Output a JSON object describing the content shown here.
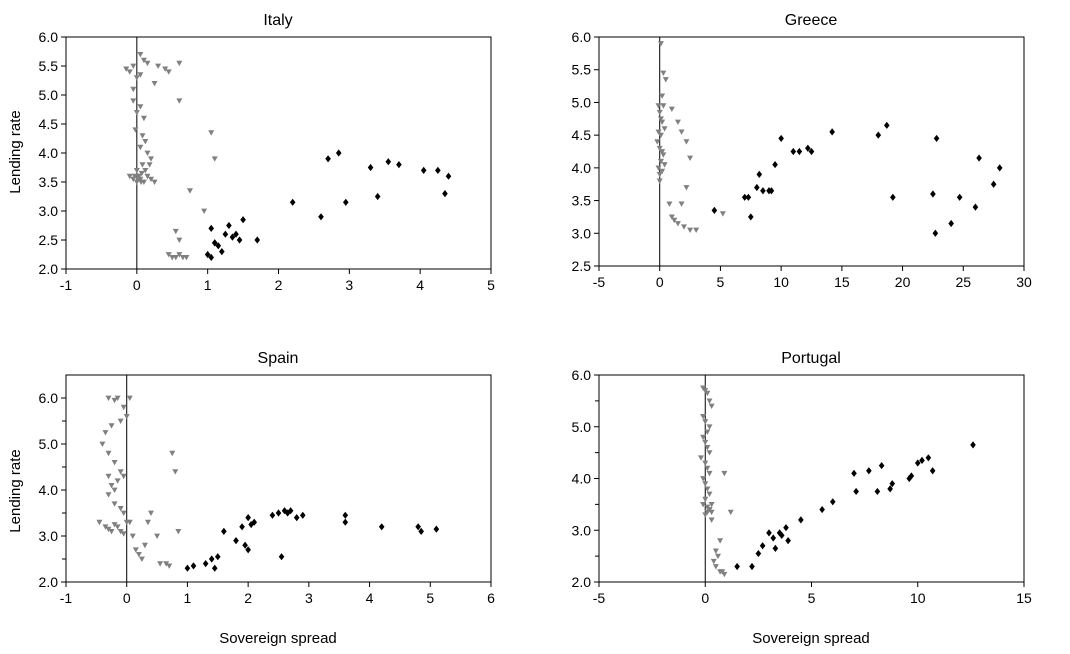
{
  "colors": {
    "grey_series": "#808080",
    "black_series": "#000000"
  },
  "chart_data": [
    {
      "type": "scatter",
      "title": "Italy",
      "xlabel": "",
      "ylabel": "Lending rate",
      "xlim": [
        -1,
        5
      ],
      "ylim": [
        2.0,
        6.0
      ],
      "xticks": [
        -1,
        0,
        1,
        2,
        3,
        4,
        5
      ],
      "xtick_labels": [
        "-1",
        "0",
        "1",
        "2",
        "3",
        "4",
        "5"
      ],
      "yticks": [
        2.0,
        2.5,
        3.0,
        3.5,
        4.0,
        4.5,
        5.0,
        5.5,
        6.0
      ],
      "ytick_labels": [
        "2.0",
        "2.5",
        "3.0",
        "3.5",
        "4.0",
        "4.5",
        "5.0",
        "5.5",
        "6.0"
      ],
      "zero_line": true,
      "grid": false,
      "series": [
        {
          "marker": "triangle-down",
          "color": "#808080",
          "x": [
            -0.15,
            -0.1,
            -0.05,
            0.05,
            0.1,
            0.0,
            -0.05,
            0.05,
            0.15,
            0.3,
            0.4,
            0.45,
            0.25,
            0.6,
            -0.05,
            0.0,
            0.05,
            0.1,
            -0.02,
            0.08,
            0.12,
            0.15,
            0.2,
            0.18,
            0.05,
            0.0,
            0.02,
            0.06,
            -0.1,
            -0.05,
            0.0,
            0.05,
            0.1,
            0.15,
            0.2,
            0.25,
            0.12,
            0.08,
            0.03,
            -0.03,
            0.07,
            0.02,
            0.6,
            1.05,
            1.1,
            0.75,
            0.95,
            0.55,
            0.6,
            0.45,
            0.5,
            0.55,
            0.65,
            0.7,
            0.6
          ],
          "y": [
            5.45,
            5.4,
            5.5,
            5.7,
            5.6,
            5.3,
            5.1,
            5.35,
            5.55,
            5.5,
            5.45,
            5.4,
            5.2,
            5.55,
            4.9,
            4.7,
            4.8,
            4.6,
            4.4,
            4.3,
            4.2,
            4.0,
            3.9,
            3.8,
            4.1,
            3.7,
            3.6,
            3.5,
            3.6,
            3.55,
            3.5,
            3.55,
            3.5,
            3.6,
            3.55,
            3.5,
            3.7,
            3.8,
            3.6,
            3.6,
            3.65,
            3.55,
            4.9,
            4.35,
            3.9,
            3.35,
            3.0,
            2.65,
            2.5,
            2.25,
            2.2,
            2.2,
            2.2,
            2.2,
            2.25
          ]
        },
        {
          "marker": "diamond",
          "color": "#000000",
          "x": [
            1.0,
            1.05,
            1.1,
            1.15,
            1.2,
            1.25,
            1.3,
            1.35,
            1.4,
            1.45,
            1.5,
            1.05,
            1.1,
            1.7,
            2.2,
            2.6,
            2.7,
            2.85,
            2.95,
            3.3,
            3.4,
            3.55,
            3.7,
            4.05,
            4.25,
            4.35,
            4.4
          ],
          "y": [
            2.25,
            2.7,
            2.45,
            2.4,
            2.3,
            2.6,
            2.75,
            2.55,
            2.6,
            2.5,
            2.85,
            2.2,
            2.45,
            2.5,
            3.15,
            2.9,
            3.9,
            4.0,
            3.15,
            3.75,
            3.25,
            3.85,
            3.8,
            3.7,
            3.7,
            3.3,
            3.6
          ]
        }
      ]
    },
    {
      "type": "scatter",
      "title": "Greece",
      "xlabel": "",
      "ylabel": "",
      "xlim": [
        -5,
        30
      ],
      "ylim": [
        2.5,
        6.0
      ],
      "xticks": [
        -5,
        0,
        5,
        10,
        15,
        20,
        25,
        30
      ],
      "xtick_labels": [
        "-5",
        "0",
        "5",
        "10",
        "15",
        "20",
        "25",
        "30"
      ],
      "yticks": [
        2.5,
        3.0,
        3.5,
        4.0,
        4.5,
        5.0,
        5.5,
        6.0
      ],
      "ytick_labels": [
        "2.5",
        "3.0",
        "3.5",
        "4.0",
        "4.5",
        "5.0",
        "5.5",
        "6.0"
      ],
      "zero_line": true,
      "grid": false,
      "series": [
        {
          "marker": "triangle-down",
          "color": "#808080",
          "x": [
            0.1,
            0.3,
            0.5,
            0.2,
            -0.1,
            0.0,
            0.2,
            0.4,
            0.1,
            -0.2,
            0.0,
            0.3,
            0.1,
            -0.1,
            0.2,
            0.0,
            0.4,
            0.2,
            -0.1,
            0.1,
            0.3,
            0.0,
            1.0,
            1.5,
            1.8,
            2.2,
            2.5,
            1.0,
            1.2,
            1.5,
            2.0,
            2.5,
            3.0,
            2.2,
            1.8,
            0.8,
            5.2
          ],
          "y": [
            5.9,
            5.45,
            5.35,
            5.1,
            4.95,
            4.85,
            4.7,
            4.6,
            4.5,
            4.4,
            4.3,
            4.2,
            4.1,
            4.0,
            3.95,
            3.9,
            4.05,
            4.25,
            4.55,
            4.75,
            4.95,
            3.8,
            4.9,
            4.7,
            4.55,
            4.4,
            4.15,
            3.25,
            3.2,
            3.15,
            3.1,
            3.05,
            3.05,
            3.7,
            3.45,
            3.45,
            3.3
          ]
        },
        {
          "marker": "diamond",
          "color": "#000000",
          "x": [
            4.5,
            7.0,
            7.5,
            7.3,
            8.0,
            8.5,
            8.2,
            9.0,
            9.5,
            9.2,
            10.0,
            11.0,
            11.5,
            12.2,
            12.5,
            14.2,
            18.0,
            18.7,
            19.2,
            22.5,
            22.8,
            22.7,
            24.0,
            24.7,
            26.0,
            26.3,
            27.5,
            28.0
          ],
          "y": [
            3.35,
            3.55,
            3.25,
            3.55,
            3.7,
            3.65,
            3.9,
            3.65,
            4.05,
            3.65,
            4.45,
            4.25,
            4.25,
            4.3,
            4.25,
            4.55,
            4.5,
            4.65,
            3.55,
            3.6,
            4.45,
            3.0,
            3.15,
            3.55,
            3.4,
            4.15,
            3.75,
            4.0
          ]
        }
      ]
    },
    {
      "type": "scatter",
      "title": "Spain",
      "xlabel": "Sovereign spread",
      "ylabel": "Lending rate",
      "xlim": [
        -1,
        6
      ],
      "ylim": [
        2.0,
        6.5
      ],
      "xticks": [
        -1,
        0,
        1,
        2,
        3,
        4,
        5,
        6
      ],
      "xtick_labels": [
        "-1",
        "0",
        "1",
        "2",
        "3",
        "4",
        "5",
        "6"
      ],
      "yticks": [
        2.0,
        3.0,
        4.0,
        5.0,
        6.0
      ],
      "ytick_labels": [
        "2.0",
        "3.0",
        "4.0",
        "5.0",
        "6.0"
      ],
      "minor_yticks": [
        2.5,
        3.5,
        4.5,
        5.5
      ],
      "zero_line": true,
      "grid": false,
      "series": [
        {
          "marker": "triangle-down",
          "color": "#808080",
          "x": [
            -0.3,
            -0.2,
            -0.15,
            -0.1,
            0.05,
            -0.05,
            0.0,
            -0.25,
            -0.35,
            -0.4,
            -0.3,
            -0.2,
            -0.1,
            -0.05,
            -0.15,
            -0.25,
            -0.3,
            -0.2,
            -0.1,
            -0.05,
            0.0,
            -0.15,
            -0.25,
            -0.35,
            -0.45,
            -0.3,
            -0.2,
            -0.1,
            -0.05,
            -0.2,
            -0.3,
            0.05,
            0.1,
            0.15,
            0.2,
            0.25,
            0.3,
            0.35,
            0.4,
            0.5,
            0.55,
            0.65,
            0.7,
            0.75,
            0.8,
            0.85
          ],
          "y": [
            6.0,
            5.95,
            6.0,
            5.5,
            6.0,
            5.8,
            5.6,
            5.4,
            5.25,
            5.0,
            4.8,
            4.6,
            4.4,
            4.3,
            4.2,
            4.1,
            3.9,
            3.7,
            3.6,
            3.5,
            3.3,
            3.2,
            3.1,
            3.2,
            3.3,
            3.15,
            3.25,
            3.1,
            3.05,
            4.0,
            4.3,
            3.3,
            3.0,
            2.7,
            2.6,
            2.5,
            2.8,
            3.3,
            3.5,
            3.0,
            2.4,
            2.4,
            2.35,
            4.8,
            4.4,
            3.1
          ]
        },
        {
          "marker": "diamond",
          "color": "#000000",
          "x": [
            1.0,
            1.1,
            1.3,
            1.4,
            1.5,
            1.45,
            1.6,
            1.8,
            1.9,
            2.0,
            2.05,
            2.1,
            1.95,
            2.0,
            2.4,
            2.5,
            2.6,
            2.65,
            2.7,
            2.8,
            2.9,
            2.55,
            3.6,
            3.6,
            4.2,
            4.8,
            4.85,
            5.1
          ],
          "y": [
            2.3,
            2.35,
            2.4,
            2.5,
            2.55,
            2.3,
            3.1,
            2.9,
            3.2,
            3.4,
            3.25,
            3.3,
            2.8,
            2.7,
            3.45,
            3.5,
            3.55,
            3.5,
            3.55,
            3.4,
            3.45,
            2.55,
            3.45,
            3.3,
            3.2,
            3.2,
            3.1,
            3.15
          ]
        }
      ]
    },
    {
      "type": "scatter",
      "title": "Portugal",
      "xlabel": "Sovereign spread",
      "ylabel": "",
      "xlim": [
        -5,
        15
      ],
      "ylim": [
        2.0,
        6.0
      ],
      "xticks": [
        -5,
        0,
        5,
        10,
        15
      ],
      "xtick_labels": [
        "-5",
        "0",
        "5",
        "10",
        "15"
      ],
      "yticks": [
        2.0,
        3.0,
        4.0,
        5.0,
        6.0
      ],
      "ytick_labels": [
        "2.0",
        "3.0",
        "4.0",
        "5.0",
        "6.0"
      ],
      "minor_yticks": [
        2.5,
        3.5,
        4.5,
        5.5
      ],
      "zero_line": true,
      "grid": false,
      "series": [
        {
          "marker": "triangle-down",
          "color": "#808080",
          "x": [
            -0.1,
            0.0,
            0.1,
            0.2,
            0.3,
            -0.1,
            0.0,
            0.2,
            0.1,
            -0.1,
            0.0,
            0.1,
            0.2,
            -0.2,
            0.0,
            0.1,
            0.2,
            -0.1,
            0.0,
            0.1,
            0.2,
            0.0,
            -0.1,
            0.1,
            0.2,
            0.3,
            0.0,
            0.1,
            0.2,
            0.3,
            0.4,
            0.5,
            0.6,
            0.7,
            0.8,
            0.9,
            1.2,
            0.9,
            0.7,
            0.5,
            0.3
          ],
          "y": [
            5.75,
            5.7,
            5.65,
            5.5,
            5.4,
            5.2,
            5.1,
            5.0,
            4.9,
            4.8,
            4.7,
            4.6,
            4.5,
            4.4,
            4.3,
            4.2,
            4.1,
            4.0,
            3.9,
            3.8,
            3.7,
            3.6,
            3.5,
            3.45,
            3.4,
            3.35,
            3.3,
            3.35,
            3.4,
            3.5,
            2.4,
            2.3,
            2.5,
            2.2,
            2.2,
            2.15,
            3.35,
            4.1,
            2.8,
            2.6,
            3.2
          ]
        },
        {
          "marker": "diamond",
          "color": "#000000",
          "x": [
            1.5,
            2.2,
            2.5,
            2.7,
            3.0,
            3.2,
            3.3,
            3.5,
            3.6,
            3.8,
            3.9,
            4.5,
            5.5,
            6.0,
            7.0,
            7.1,
            7.7,
            8.1,
            8.3,
            8.7,
            8.8,
            9.6,
            9.7,
            10.0,
            10.2,
            10.5,
            10.7,
            12.6
          ],
          "y": [
            2.3,
            2.3,
            2.55,
            2.7,
            2.95,
            2.85,
            2.65,
            2.95,
            2.9,
            3.05,
            2.8,
            3.2,
            3.4,
            3.55,
            4.1,
            3.75,
            4.15,
            3.75,
            4.25,
            3.8,
            3.9,
            4.0,
            4.05,
            4.3,
            4.35,
            4.4,
            4.15,
            4.65
          ]
        }
      ]
    }
  ]
}
